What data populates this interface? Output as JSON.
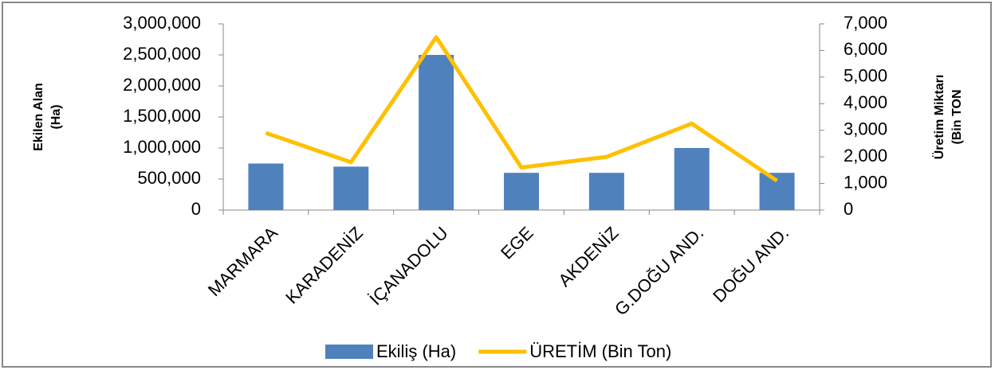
{
  "chart_data": {
    "type": "bar_line",
    "categories": [
      "MARMARA",
      "KARADENİZ",
      "İÇANADOLU",
      "EGE",
      "AKDENİZ",
      "G.DOĞU AND.",
      "DOĞU AND."
    ],
    "series": [
      {
        "name": "Ekiliş (Ha)",
        "color": "#4f81bd",
        "type": "bar",
        "values": [
          750000,
          700000,
          2500000,
          600000,
          600000,
          1000000,
          600000
        ]
      },
      {
        "name": "ÜRETİM (Bin Ton)",
        "color": "#ffc000",
        "type": "line",
        "axis": "y2",
        "values": [
          2900,
          1800,
          6500,
          1600,
          2000,
          3250,
          1100
        ]
      }
    ],
    "y_label": [
      "Ekilen Alan",
      "(Ha)"
    ],
    "y2_label": [
      "Üretim Miktarı",
      "(Bin TON"
    ],
    "ylim": [
      0,
      3000000
    ],
    "yticks": [
      0,
      {
        "value": 500000,
        "label": "500,000"
      },
      {
        "value": 1000000,
        "label": "1,000,000"
      },
      {
        "value": 1500000,
        "label": "1,500,000"
      },
      {
        "value": 2000000,
        "label": "2,000,000"
      },
      {
        "value": 2500000,
        "label": "2,500,000"
      },
      {
        "value": 3000000,
        "label": "3,000,000"
      }
    ],
    "y2lim": [
      0,
      7000
    ],
    "y2ticks": [
      0,
      {
        "value": 1000,
        "label": "1,000"
      },
      {
        "value": 2000,
        "label": "2,000"
      },
      {
        "value": 3000,
        "label": "3,000"
      },
      {
        "value": 4000,
        "label": "4,000"
      },
      {
        "value": 5000,
        "label": "5,000"
      },
      {
        "value": 6000,
        "label": "6,000"
      },
      {
        "value": 7000,
        "label": "7,000"
      }
    ],
    "legend": "bottom"
  }
}
